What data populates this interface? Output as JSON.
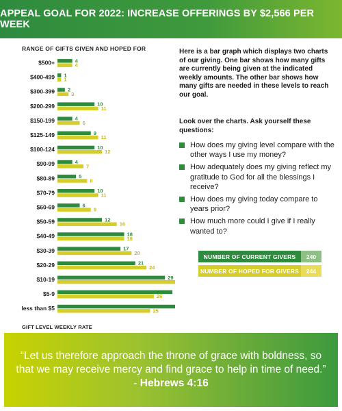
{
  "header": {
    "title": "APPEAL GOAL FOR 2022: INCREASE OFFERINGS BY $2,566 PER WEEK"
  },
  "chart_data": {
    "type": "bar",
    "orientation": "horizontal",
    "title": "RANGE OF GIFTS GIVEN AND HOPED FOR",
    "xlabel": "GIFT LEVEL WEEKLY RATE",
    "ylabel": "",
    "categories": [
      "$500+",
      "$400-499",
      "$300-399",
      "$200-299",
      "$150-199",
      "$125-149",
      "$100-124",
      "$90-99",
      "$80-89",
      "$70-79",
      "$60-69",
      "$50-59",
      "$40-49",
      "$30-39",
      "$20-29",
      "$10-19",
      "$5-9",
      "less than $5"
    ],
    "series": [
      {
        "name": "NUMBER OF CURRENT GIVERS",
        "color": "#2e8b3e",
        "label_color": "#2e8b3e",
        "values": [
          4,
          1,
          2,
          10,
          4,
          9,
          10,
          4,
          5,
          10,
          6,
          12,
          18,
          17,
          21,
          29,
          31,
          47
        ]
      },
      {
        "name": "NUMBER OF HOPED FOR GIVERS",
        "color": "#d4cd2a",
        "label_color": "#c9b81a",
        "values": [
          4,
          1,
          3,
          11,
          6,
          11,
          12,
          7,
          8,
          11,
          9,
          16,
          18,
          20,
          24,
          32,
          26,
          25
        ]
      }
    ],
    "xlim": [
      0,
      50
    ],
    "grid": false,
    "legend_position": "right"
  },
  "intro_text": "Here is a bar graph which displays two charts of our giving. One bar shows how many gifts are currently being given at the indicated weekly amounts. The other bar shows how many gifts are needed in these levels to reach our goal.",
  "lookover_text": "Look over the charts. Ask yourself these questions:",
  "questions": [
    "How does my giving level compare with the other ways I use my money?",
    "How adequately does my giving reflect my gratitude to God for all the blessings I receive?",
    "How does my giving today compare to years prior?",
    "How much more could I give if I really wanted to?"
  ],
  "legend": [
    {
      "label": "NUMBER OF CURRENT GIVERS",
      "count": "240",
      "color": "#2e8b3e",
      "count_color": "#8cc084"
    },
    {
      "label": "NUMBER OF HOPED FOR GIVERS",
      "count": "244",
      "color": "#d4cd2a",
      "count_color": "#e8dc5a"
    }
  ],
  "footer": {
    "quote": "“Let us therefore approach the throne of grace with boldness, so that we may receive mercy and find grace to help in time of need.”",
    "separator": " - ",
    "reference": "Hebrews 4:16"
  }
}
